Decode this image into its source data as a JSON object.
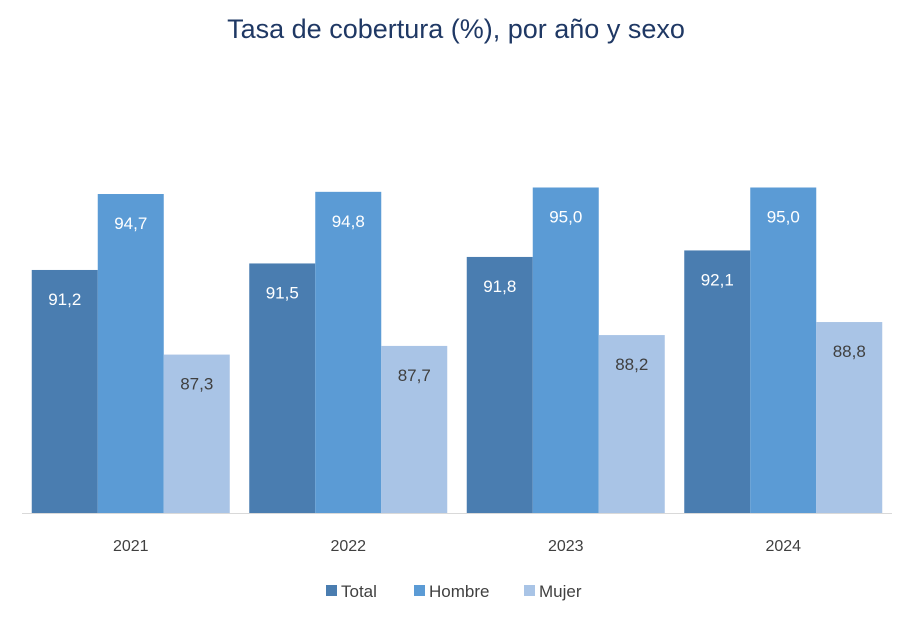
{
  "chart_data": {
    "type": "bar",
    "title": "Tasa de cobertura (%), por año y sexo",
    "xlabel": "",
    "ylabel": "",
    "categories": [
      "2021",
      "2022",
      "2023",
      "2024"
    ],
    "series": [
      {
        "name": "Total",
        "color": "#4a7db0",
        "label_color": "#ffffff",
        "values": [
          91.2,
          91.5,
          91.8,
          92.1
        ],
        "labels": [
          "91,2",
          "91,5",
          "91,8",
          "92,1"
        ]
      },
      {
        "name": "Hombre",
        "color": "#5b9bd5",
        "label_color": "#ffffff",
        "values": [
          94.7,
          94.8,
          95.0,
          95.0
        ],
        "labels": [
          "94,7",
          "94,8",
          "95,0",
          "95,0"
        ]
      },
      {
        "name": "Mujer",
        "color": "#a9c4e6",
        "label_color": "#404040",
        "values": [
          87.3,
          87.7,
          88.2,
          88.8
        ],
        "labels": [
          "87,3",
          "87,7",
          "88,2",
          "88,8"
        ]
      }
    ],
    "ylim": [
      80,
      100
    ],
    "grid": false,
    "y_axis_visible": false,
    "legend": "bottom"
  }
}
